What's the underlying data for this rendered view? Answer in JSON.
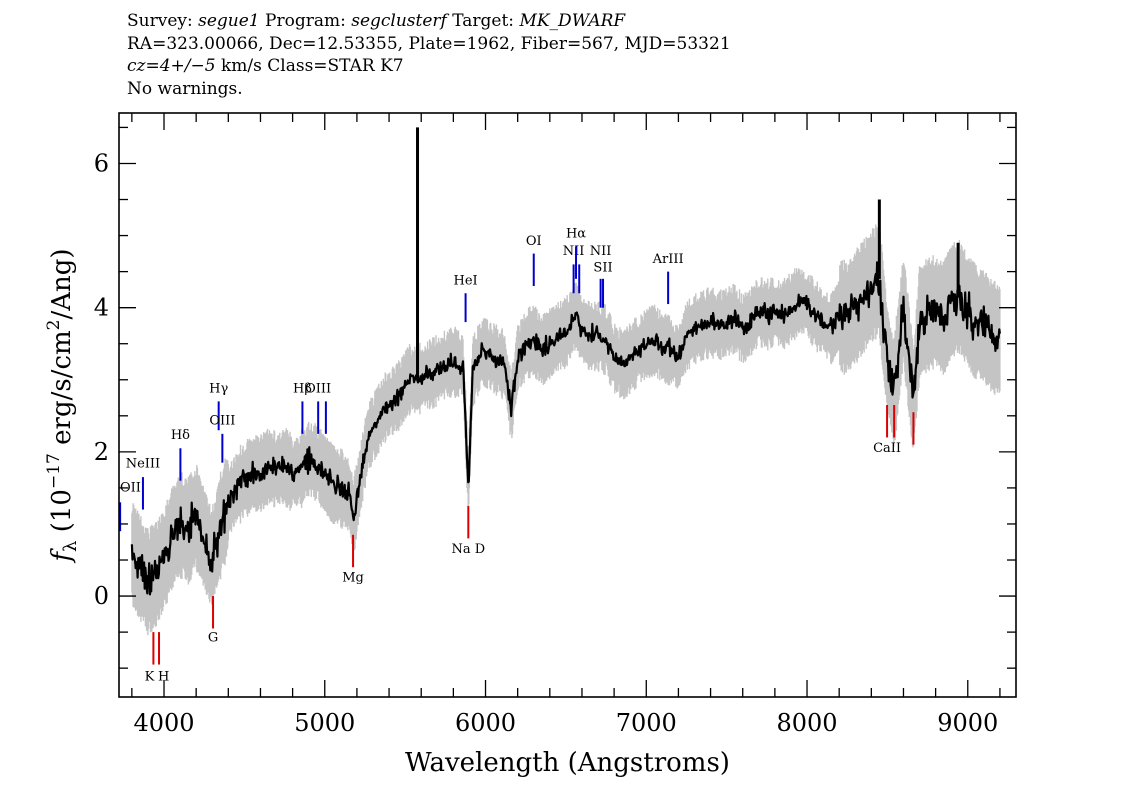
{
  "header": {
    "line1": {
      "survey_label": "Survey:",
      "survey": "segue1",
      "program_label": "Program:",
      "program": "segclusterf",
      "target_label": "Target:",
      "target": "MK_DWARF"
    },
    "line2": "RA=323.00066, Dec=12.53355, Plate=1962, Fiber=567, MJD=53321",
    "line3": {
      "cz": "cz=4+/−5",
      "rest": " km/s Class=STAR K7"
    },
    "line4": "No warnings."
  },
  "chart_data": {
    "type": "line",
    "xlabel": "Wavelength (Angstroms)",
    "ylabel": {
      "main": "f",
      "sub": "λ",
      "unit_open": " (10",
      "exp": "−17",
      "unit_mid": " erg/s/cm",
      "exp2": "2",
      "unit_close": "/Ang)"
    },
    "xlim": [
      3720,
      9300
    ],
    "ylim": [
      -1.4,
      6.7
    ],
    "xticks": [
      4000,
      5000,
      6000,
      7000,
      8000,
      9000
    ],
    "xtick_labels": [
      "4000",
      "5000",
      "6000",
      "7000",
      "8000",
      "9000"
    ],
    "yticks": [
      0,
      2,
      4,
      6
    ],
    "ytick_labels": [
      "0",
      "2",
      "4",
      "6"
    ],
    "grid": false,
    "colors": {
      "flux": "#000000",
      "error": "#c4c4c4",
      "emission": "#0000cc",
      "absorption": "#dd0000"
    },
    "series": [
      {
        "values": [
          [
            3800,
            0.6
          ],
          [
            3850,
            0.4
          ],
          [
            3900,
            0.2
          ],
          [
            3950,
            0.3
          ],
          [
            4000,
            0.5
          ],
          [
            4050,
            0.8
          ],
          [
            4100,
            1.0
          ],
          [
            4150,
            0.9
          ],
          [
            4200,
            1.1
          ],
          [
            4250,
            0.8
          ],
          [
            4300,
            0.5
          ],
          [
            4340,
            0.9
          ],
          [
            4400,
            1.3
          ],
          [
            4450,
            1.5
          ],
          [
            4500,
            1.6
          ],
          [
            4550,
            1.7
          ],
          [
            4600,
            1.7
          ],
          [
            4650,
            1.8
          ],
          [
            4700,
            1.75
          ],
          [
            4750,
            1.8
          ],
          [
            4800,
            1.7
          ],
          [
            4850,
            1.75
          ],
          [
            4900,
            1.9
          ],
          [
            4950,
            1.85
          ],
          [
            5000,
            1.7
          ],
          [
            5050,
            1.55
          ],
          [
            5100,
            1.5
          ],
          [
            5150,
            1.4
          ],
          [
            5180,
            1.1
          ],
          [
            5220,
            1.6
          ],
          [
            5270,
            2.2
          ],
          [
            5320,
            2.4
          ],
          [
            5370,
            2.6
          ],
          [
            5420,
            2.7
          ],
          [
            5470,
            2.8
          ],
          [
            5520,
            3.0
          ],
          [
            5577,
            3.0
          ],
          [
            5620,
            3.05
          ],
          [
            5680,
            3.1
          ],
          [
            5740,
            3.2
          ],
          [
            5800,
            3.25
          ],
          [
            5860,
            3.2
          ],
          [
            5893,
            1.5
          ],
          [
            5920,
            3.1
          ],
          [
            5980,
            3.4
          ],
          [
            6050,
            3.3
          ],
          [
            6120,
            3.2
          ],
          [
            6160,
            2.6
          ],
          [
            6200,
            3.3
          ],
          [
            6260,
            3.5
          ],
          [
            6300,
            3.55
          ],
          [
            6350,
            3.4
          ],
          [
            6400,
            3.5
          ],
          [
            6450,
            3.6
          ],
          [
            6500,
            3.65
          ],
          [
            6563,
            3.9
          ],
          [
            6600,
            3.7
          ],
          [
            6650,
            3.6
          ],
          [
            6700,
            3.6
          ],
          [
            6750,
            3.55
          ],
          [
            6800,
            3.3
          ],
          [
            6860,
            3.2
          ],
          [
            6900,
            3.3
          ],
          [
            6950,
            3.4
          ],
          [
            7000,
            3.5
          ],
          [
            7050,
            3.55
          ],
          [
            7100,
            3.45
          ],
          [
            7150,
            3.4
          ],
          [
            7200,
            3.3
          ],
          [
            7250,
            3.6
          ],
          [
            7300,
            3.7
          ],
          [
            7350,
            3.75
          ],
          [
            7400,
            3.8
          ],
          [
            7450,
            3.75
          ],
          [
            7500,
            3.8
          ],
          [
            7550,
            3.85
          ],
          [
            7600,
            3.7
          ],
          [
            7650,
            3.8
          ],
          [
            7700,
            3.95
          ],
          [
            7750,
            3.9
          ],
          [
            7800,
            3.95
          ],
          [
            7850,
            3.9
          ],
          [
            7900,
            4.0
          ],
          [
            7950,
            4.1
          ],
          [
            8000,
            4.05
          ],
          [
            8050,
            3.9
          ],
          [
            8100,
            3.8
          ],
          [
            8150,
            3.7
          ],
          [
            8200,
            3.9
          ],
          [
            8250,
            3.85
          ],
          [
            8300,
            4.0
          ],
          [
            8350,
            4.15
          ],
          [
            8400,
            4.3
          ],
          [
            8450,
            4.4
          ],
          [
            8498,
            3.3
          ],
          [
            8542,
            2.8
          ],
          [
            8600,
            4.0
          ],
          [
            8662,
            2.7
          ],
          [
            8700,
            3.8
          ],
          [
            8750,
            3.9
          ],
          [
            8800,
            3.95
          ],
          [
            8850,
            3.85
          ],
          [
            8900,
            4.1
          ],
          [
            8950,
            4.15
          ],
          [
            9000,
            3.95
          ],
          [
            9050,
            3.8
          ],
          [
            9100,
            3.75
          ],
          [
            9150,
            3.6
          ],
          [
            9200,
            3.55
          ]
        ]
      },
      {
        "values": [
          [
            5577,
            6.5
          ],
          [
            8450,
            5.5
          ],
          [
            8940,
            4.9
          ]
        ]
      }
    ],
    "line_markers": [
      {
        "label": "OII",
        "wave": 3727,
        "y1": 0.9,
        "y2": 1.3,
        "kind": "emission",
        "label_y": 1.45
      },
      {
        "label": "NeIII",
        "wave": 3869,
        "y1": 1.2,
        "y2": 1.65,
        "kind": "emission",
        "label_y": 1.78
      },
      {
        "label": "Hδ",
        "wave": 4102,
        "y1": 1.6,
        "y2": 2.05,
        "kind": "emission",
        "label_y": 2.18
      },
      {
        "label": "Hγ",
        "wave": 4340,
        "y1": 2.3,
        "y2": 2.7,
        "kind": "emission",
        "label_y": 2.82
      },
      {
        "label": "OIII",
        "wave": 4363,
        "y1": 1.85,
        "y2": 2.25,
        "kind": "emission",
        "label_y": 2.38
      },
      {
        "label": "Hβ",
        "wave": 4861,
        "y1": 2.25,
        "y2": 2.7,
        "kind": "emission",
        "label_y": 2.82
      },
      {
        "label": "OIII",
        "wave": 4959,
        "y1": 2.25,
        "y2": 2.7,
        "kind": "emission",
        "label_y": 2.82
      },
      {
        "label": "",
        "wave": 5007,
        "y1": 2.25,
        "y2": 2.7,
        "kind": "emission",
        "label_y": 2.82
      },
      {
        "label": "HeI",
        "wave": 5876,
        "y1": 3.8,
        "y2": 4.2,
        "kind": "emission",
        "label_y": 4.32
      },
      {
        "label": "OI",
        "wave": 6300,
        "y1": 4.3,
        "y2": 4.75,
        "kind": "emission",
        "label_y": 4.87
      },
      {
        "label": "NII",
        "wave": 6548,
        "y1": 4.2,
        "y2": 4.6,
        "kind": "emission",
        "label_y": 4.73
      },
      {
        "label": "Hα",
        "wave": 6563,
        "y1": 4.4,
        "y2": 4.85,
        "kind": "emission",
        "label_y": 4.97
      },
      {
        "label": "",
        "wave": 6583,
        "y1": 4.2,
        "y2": 4.6,
        "kind": "emission",
        "label_y": 4.73
      },
      {
        "label": "NII",
        "wave": 6716,
        "y1": 4.0,
        "y2": 4.4,
        "kind": "emission",
        "label_y": 4.73
      },
      {
        "label": "SII",
        "wave": 6731,
        "y1": 4.0,
        "y2": 4.4,
        "kind": "emission",
        "label_y": 4.5
      },
      {
        "label": "ArIII",
        "wave": 7136,
        "y1": 4.05,
        "y2": 4.5,
        "kind": "emission",
        "label_y": 4.62
      },
      {
        "label": "K",
        "wave": 3934,
        "y1": -0.95,
        "y2": -0.5,
        "kind": "absorption",
        "label_y": -1.17
      },
      {
        "label": "H",
        "wave": 3969,
        "y1": -0.95,
        "y2": -0.5,
        "kind": "absorption",
        "label_y": -1.17
      },
      {
        "label": "G",
        "wave": 4305,
        "y1": -0.45,
        "y2": 0.0,
        "kind": "absorption",
        "label_y": -0.63
      },
      {
        "label": "Mg",
        "wave": 5176,
        "y1": 0.4,
        "y2": 0.85,
        "kind": "absorption",
        "label_y": 0.2
      },
      {
        "label": "Na D",
        "wave": 5893,
        "y1": 0.8,
        "y2": 1.25,
        "kind": "absorption",
        "label_y": 0.6
      },
      {
        "label": "CaII",
        "wave": 8498,
        "y1": 2.2,
        "y2": 2.65,
        "kind": "absorption",
        "label_y": 2.0
      },
      {
        "label": "",
        "wave": 8542,
        "y1": 2.2,
        "y2": 2.65,
        "kind": "absorption",
        "label_y": 2.0
      },
      {
        "label": "",
        "wave": 8662,
        "y1": 2.1,
        "y2": 2.55,
        "kind": "absorption",
        "label_y": 2.0
      }
    ]
  }
}
